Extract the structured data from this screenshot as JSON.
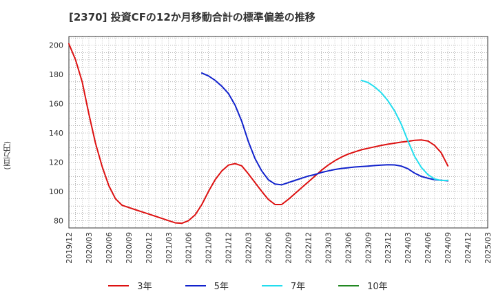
{
  "chart_data": {
    "type": "line",
    "title": "[2370]  投資CFの12か月移動合計の標準偏差の推移",
    "ylabel": "(百万円)",
    "ylim": [
      75,
      206
    ],
    "yticks": [
      80,
      100,
      120,
      140,
      160,
      180,
      200
    ],
    "x_ticks": [
      "2019/12",
      "2020/03",
      "2020/06",
      "2020/09",
      "2020/12",
      "2021/03",
      "2021/06",
      "2021/09",
      "2021/12",
      "2022/03",
      "2022/06",
      "2022/09",
      "2022/12",
      "2023/03",
      "2023/06",
      "2023/09",
      "2023/12",
      "2024/03",
      "2024/06",
      "2024/09",
      "2024/12",
      "2025/03"
    ],
    "grid": true,
    "legend_position": "bottom",
    "series": [
      {
        "name": "3年",
        "color": "#dd1111",
        "x": [
          "2019/12",
          "2020/01",
          "2020/02",
          "2020/03",
          "2020/04",
          "2020/05",
          "2020/06",
          "2020/07",
          "2020/08",
          "2020/09",
          "2020/10",
          "2020/11",
          "2020/12",
          "2021/01",
          "2021/02",
          "2021/03",
          "2021/04",
          "2021/05",
          "2021/06",
          "2021/07",
          "2021/08",
          "2021/09",
          "2021/10",
          "2021/11",
          "2021/12",
          "2022/01",
          "2022/02",
          "2022/03",
          "2022/04",
          "2022/05",
          "2022/06",
          "2022/07",
          "2022/08",
          "2022/09",
          "2022/10",
          "2022/11",
          "2022/12",
          "2023/01",
          "2023/02",
          "2023/03",
          "2023/04",
          "2023/05",
          "2023/06",
          "2023/07",
          "2023/08",
          "2023/09",
          "2023/10",
          "2023/11",
          "2023/12",
          "2024/01",
          "2024/02",
          "2024/03",
          "2024/04",
          "2024/05",
          "2024/06",
          "2024/07",
          "2024/08",
          "2024/09"
        ],
        "values": [
          201,
          190,
          175,
          153,
          133,
          117,
          104,
          95,
          90.5,
          89,
          87.5,
          86,
          84.5,
          83,
          81.5,
          80,
          78.5,
          78.2,
          80,
          84,
          91,
          100,
          108,
          114,
          118,
          119,
          117.5,
          112,
          106,
          100,
          94.5,
          91,
          91,
          94.5,
          98.5,
          102.5,
          106.5,
          110.5,
          114.5,
          118,
          121,
          123.5,
          125.5,
          127,
          128.5,
          129.5,
          130.5,
          131.5,
          132.3,
          133,
          133.7,
          134.3,
          135,
          135.2,
          134.5,
          131.5,
          126.5,
          117.5
        ]
      },
      {
        "name": "5年",
        "color": "#1122cc",
        "x": [
          "2021/08",
          "2021/09",
          "2021/10",
          "2021/11",
          "2021/12",
          "2022/01",
          "2022/02",
          "2022/03",
          "2022/04",
          "2022/05",
          "2022/06",
          "2022/07",
          "2022/08",
          "2022/09",
          "2022/10",
          "2022/11",
          "2022/12",
          "2023/01",
          "2023/02",
          "2023/03",
          "2023/04",
          "2023/05",
          "2023/06",
          "2023/07",
          "2023/08",
          "2023/09",
          "2023/10",
          "2023/11",
          "2023/12",
          "2024/01",
          "2024/02",
          "2024/03",
          "2024/04",
          "2024/05",
          "2024/06",
          "2024/07",
          "2024/08",
          "2024/09"
        ],
        "values": [
          181,
          179,
          176,
          172,
          167,
          159,
          148,
          134,
          122.5,
          114,
          108,
          105,
          104.5,
          106,
          107.5,
          109,
          110.5,
          111.5,
          113,
          114,
          115,
          115.7,
          116.2,
          116.7,
          117,
          117.3,
          117.7,
          118,
          118.2,
          118.1,
          117.3,
          115.5,
          112.5,
          110.3,
          109,
          108,
          107.6,
          107.3
        ]
      },
      {
        "name": "7年",
        "color": "#22ddee",
        "x": [
          "2023/08",
          "2023/09",
          "2023/10",
          "2023/11",
          "2023/12",
          "2024/01",
          "2024/02",
          "2024/03",
          "2024/04",
          "2024/05",
          "2024/06",
          "2024/07",
          "2024/08",
          "2024/09"
        ],
        "values": [
          176,
          174.5,
          171.5,
          167.5,
          162,
          155,
          146,
          134.5,
          124,
          116.5,
          111.5,
          108.5,
          107.5,
          107.5
        ]
      },
      {
        "name": "10年",
        "color": "#228822",
        "x": [],
        "values": []
      }
    ]
  }
}
